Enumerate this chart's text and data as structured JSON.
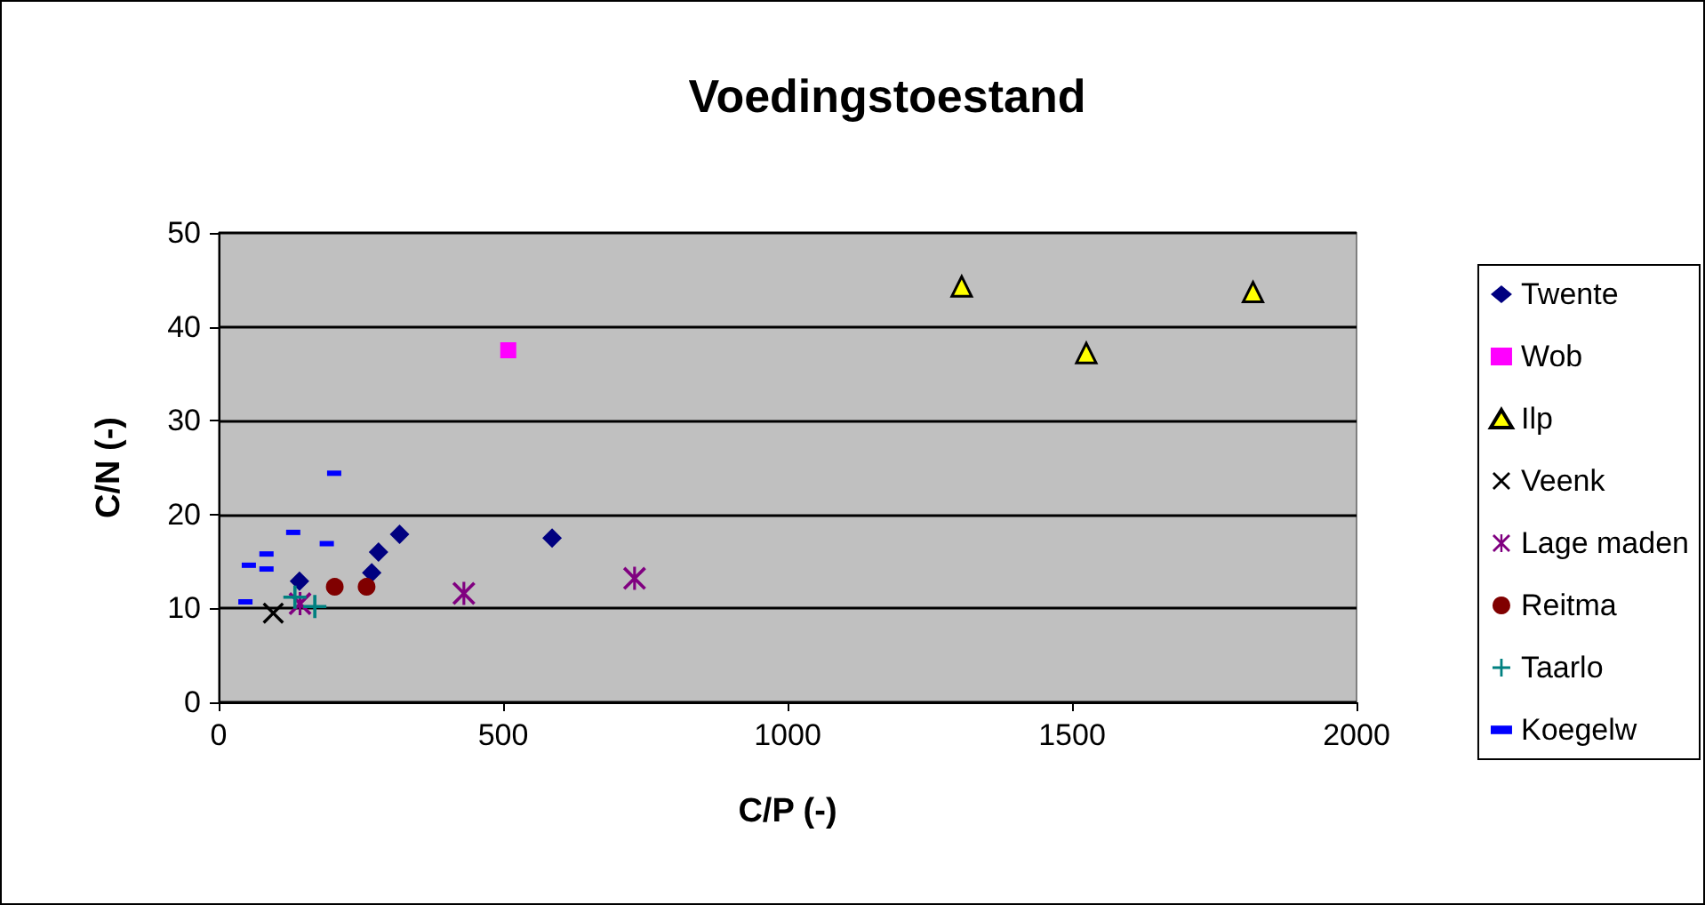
{
  "chart_data": {
    "type": "scatter",
    "title": "Voedingstoestand",
    "xlabel": "C/P (-)",
    "ylabel": "C/N (-)",
    "xlim": [
      0,
      2000
    ],
    "xticks": [
      0,
      500,
      1000,
      1500,
      2000
    ],
    "ylim": [
      0,
      50
    ],
    "yticks": [
      0,
      10,
      20,
      30,
      40,
      50
    ],
    "grid": "y",
    "legend": "right",
    "series": [
      {
        "name": "Twente",
        "color": "#000080",
        "marker": "diamond",
        "x": [
          142,
          269,
          281,
          318,
          586
        ],
        "values": [
          12.9,
          13.8,
          16.0,
          17.9,
          17.5
        ]
      },
      {
        "name": "Wob",
        "color": "#ff00ff",
        "marker": "square",
        "x": [
          509
        ],
        "values": [
          37.5
        ]
      },
      {
        "name": "Ilp",
        "color": "#ffff00",
        "marker": "triangle",
        "x": [
          1306,
          1525,
          1818
        ],
        "values": [
          44.3,
          37.2,
          43.7
        ]
      },
      {
        "name": "Veenk",
        "color": "#000000",
        "marker": "cross",
        "x": [
          96
        ],
        "values": [
          9.5
        ]
      },
      {
        "name": "Lage maden",
        "color": "#800080",
        "x": [
          143,
          431,
          731
        ],
        "values": [
          10.5,
          11.6,
          13.2
        ]
      },
      {
        "name": "Reitma",
        "color": "#800000",
        "marker": "circle",
        "x": [
          204,
          260
        ],
        "values": [
          12.3,
          12.3
        ]
      },
      {
        "name": "Taarlo",
        "color": "#008080",
        "marker": "plus",
        "x": [
          134,
          169
        ],
        "values": [
          11.2,
          10.2
        ]
      },
      {
        "name": "Koegelw",
        "color": "#0000ff",
        "x": [
          203,
          131,
          190,
          84,
          53,
          84,
          47
        ],
        "values": [
          24.4,
          18.1,
          16.9,
          15.8,
          14.6,
          14.2,
          10.7
        ]
      }
    ]
  }
}
